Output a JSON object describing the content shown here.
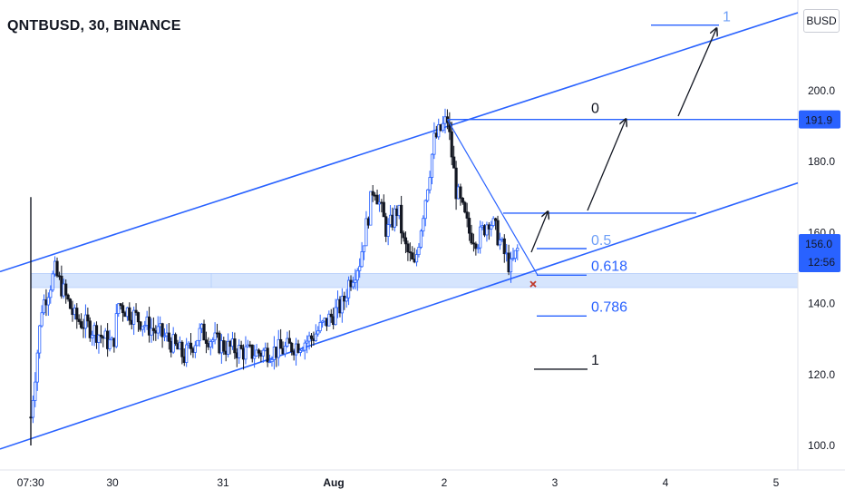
{
  "header": {
    "title": "QNTBUSD, 30, BINANCE",
    "currency_button": "BUSD"
  },
  "colors": {
    "accent": "#2962ff",
    "up": "#2962ff",
    "down": "#131722",
    "zone": "#cfe0fd",
    "text": "#131722"
  },
  "chart_data": {
    "type": "candlestick",
    "symbol": "QNTBUSD",
    "interval": "30",
    "exchange": "BINANCE",
    "y_ticks": [
      "100.0",
      "120.0",
      "140.0",
      "160.0",
      "180.0",
      "200.0"
    ],
    "x_ticks": [
      "07:30",
      "30",
      "31",
      "Aug",
      "2",
      "3",
      "4",
      "5"
    ],
    "ylim": [
      96,
      222
    ],
    "price_labels": [
      {
        "value": 191.9,
        "text": "191.9"
      },
      {
        "value": 156.0,
        "text": "156.0",
        "countdown": "12:56"
      }
    ],
    "support_zone": [
      144.5,
      148.5
    ],
    "channel": {
      "upper": [
        [
          0,
          149
        ],
        [
          5.15,
          222
        ]
      ],
      "lower": [
        [
          0,
          99
        ],
        [
          5.15,
          174
        ]
      ]
    },
    "fib_levels": [
      {
        "label": "0",
        "price": 191.9
      },
      {
        "label": "0.5",
        "price": 155.5
      },
      {
        "label": "0.618",
        "price": 148.0
      },
      {
        "label": "0.786",
        "price": 136.5
      },
      {
        "label": "1",
        "price": 121.5
      },
      {
        "label": "1",
        "price": 218.5
      }
    ],
    "projection_path": [
      [
        2.77,
        149
      ],
      [
        3.6,
        192
      ],
      [
        4.5,
        215
      ]
    ],
    "price_path": [
      [
        -0.8,
        108
      ],
      [
        -0.7,
        139
      ],
      [
        -0.58,
        149
      ],
      [
        -0.4,
        136
      ],
      [
        -0.2,
        132
      ],
      [
        -0.05,
        128
      ],
      [
        0.0,
        140
      ],
      [
        0.25,
        134
      ],
      [
        0.45,
        130
      ],
      [
        0.6,
        125
      ],
      [
        0.75,
        132
      ],
      [
        0.95,
        128
      ],
      [
        1.2,
        126
      ],
      [
        1.5,
        127
      ],
      [
        1.75,
        130
      ],
      [
        1.9,
        135
      ],
      [
        2.05,
        140
      ],
      [
        2.1,
        146
      ],
      [
        2.2,
        152
      ],
      [
        2.28,
        165
      ],
      [
        2.33,
        174
      ],
      [
        2.45,
        160
      ],
      [
        2.55,
        167
      ],
      [
        2.6,
        157
      ],
      [
        2.7,
        150
      ],
      [
        2.8,
        170
      ],
      [
        2.88,
        186
      ],
      [
        3.0,
        191.9
      ],
      [
        3.08,
        172
      ],
      [
        3.2,
        160
      ],
      [
        3.28,
        158
      ],
      [
        3.38,
        164
      ],
      [
        3.45,
        160
      ],
      [
        3.52,
        154
      ],
      [
        3.58,
        150
      ],
      [
        3.65,
        156
      ]
    ],
    "wick_spike": {
      "x": -0.8,
      "low": 100,
      "high": 170
    }
  }
}
